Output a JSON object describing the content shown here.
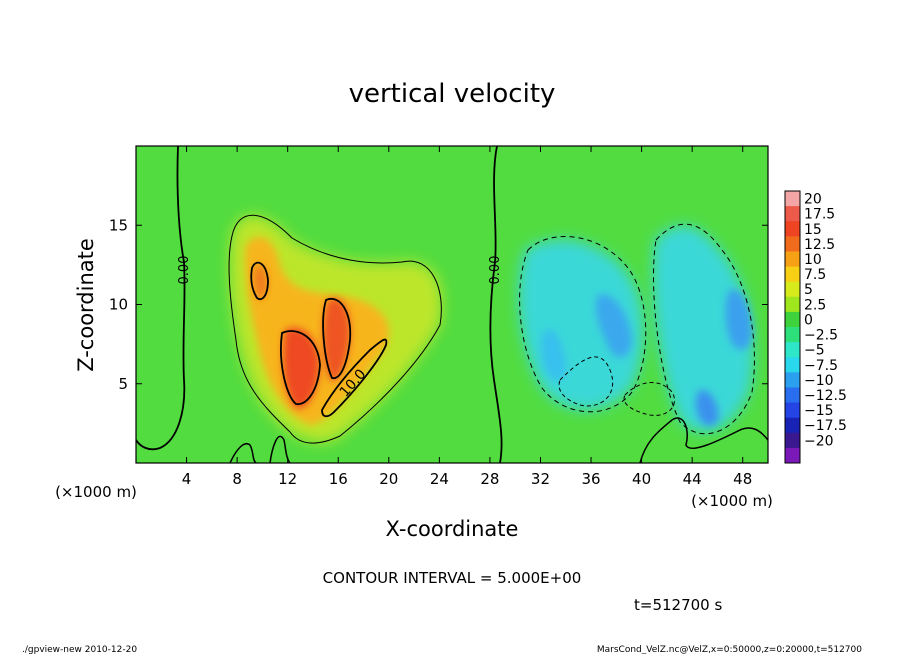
{
  "chart_data": {
    "type": "heatmap",
    "title": "vertical velocity",
    "xlabel": "X-coordinate",
    "ylabel": "Z-coordinate",
    "x_unit_label": "(×1000 m)",
    "y_unit_label": "(×1000 m)",
    "xlim": [
      0,
      50
    ],
    "ylim": [
      0,
      20
    ],
    "x_ticks": [
      4,
      8,
      12,
      16,
      20,
      24,
      28,
      32,
      36,
      40,
      44,
      48
    ],
    "y_ticks": [
      5,
      10,
      15
    ],
    "contour_interval_text": "CONTOUR INTERVAL = 5.000E+00",
    "time_text": "t=512700 s",
    "contour_labels": [
      {
        "text": "0.00",
        "x": 3.8,
        "y": 12.3
      },
      {
        "text": "0.00",
        "x": 28.5,
        "y": 12.3
      },
      {
        "text": "10.0",
        "x": 17.5,
        "y": 5.4
      }
    ],
    "colorbar": {
      "levels": [
        "20",
        "17.5",
        "15",
        "12.5",
        "10",
        "7.5",
        "5",
        "2.5",
        "0",
        "−2.5",
        "−5",
        "−7.5",
        "−10",
        "−12.5",
        "−15",
        "−17.5",
        "−20"
      ],
      "colors": [
        "#f4a5a5",
        "#ee5a4a",
        "#ee4422",
        "#f06c1c",
        "#f5a015",
        "#f7cf15",
        "#d6ea1c",
        "#9fe61f",
        "#3ed23c",
        "#2ee07a",
        "#2ee6c8",
        "#2ad8ee",
        "#2aa0ee",
        "#2a6ef0",
        "#2444e6",
        "#1822b4",
        "#3a1890",
        "#7a18b8"
      ]
    }
  },
  "footer": {
    "left": "./gpview-new  2010-12-20",
    "right": "MarsCond_VelZ.nc@VelZ,x=0:50000,z=0:20000,t=512700"
  }
}
